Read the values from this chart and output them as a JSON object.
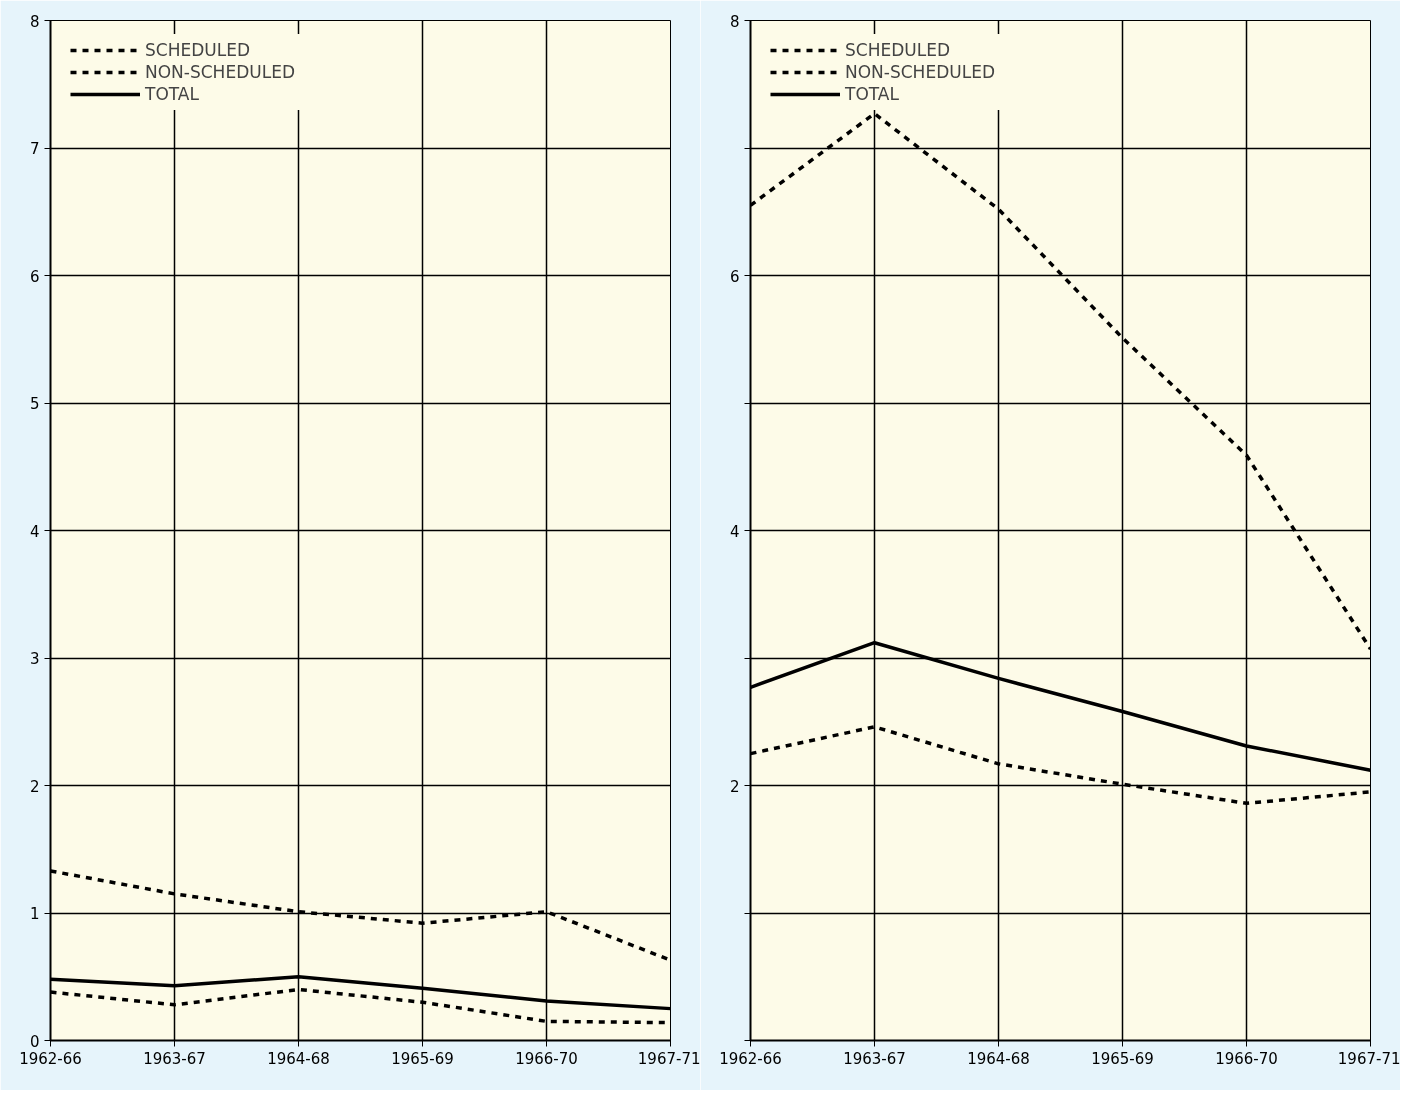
{
  "chart_data": [
    {
      "type": "line",
      "categories": [
        "1962-66",
        "1963-67",
        "1964-68",
        "1965-69",
        "1966-70",
        "1967-71"
      ],
      "ylim": [
        0,
        8
      ],
      "yticks": [
        0,
        1,
        2,
        3,
        4,
        5,
        6,
        7,
        8
      ],
      "grid": true,
      "legend": "top left",
      "marker": "none",
      "series": [
        {
          "name": "SCHEDULED",
          "color": "#000000",
          "line_style": "dashed",
          "values": [
            0.38,
            0.28,
            0.4,
            0.3,
            0.15,
            0.14
          ]
        },
        {
          "name": "NON-SCHEDULED",
          "color": "#000000",
          "line_style": "dashed",
          "values": [
            1.33,
            1.15,
            1.01,
            0.92,
            1.01,
            0.63
          ]
        },
        {
          "name": "TOTAL",
          "color": "#000000",
          "line_style": "solid",
          "values": [
            0.48,
            0.43,
            0.5,
            0.41,
            0.31,
            0.25
          ]
        }
      ]
    },
    {
      "type": "line",
      "categories": [
        "1962-66",
        "1963-67",
        "1964-68",
        "1965-69",
        "1966-70",
        "1967-71"
      ],
      "ylim": [
        0,
        8
      ],
      "yticks": [
        {
          "value": 0,
          "label": null
        },
        {
          "value": 1,
          "label": null
        },
        2,
        {
          "value": 3,
          "label": null
        },
        4,
        {
          "value": 5,
          "label": null
        },
        6,
        {
          "value": 7,
          "label": null
        },
        8
      ],
      "grid": true,
      "legend": "top left",
      "marker": "none",
      "series": [
        {
          "name": "SCHEDULED",
          "color": "#000000",
          "line_style": "dashed",
          "values": [
            2.25,
            2.46,
            2.17,
            2.01,
            1.86,
            1.95
          ]
        },
        {
          "name": "NON-SCHEDULED",
          "color": "#000000",
          "line_style": "dashed",
          "values": [
            6.55,
            7.27,
            6.52,
            5.51,
            4.59,
            3.07
          ]
        },
        {
          "name": "TOTAL",
          "color": "#000000",
          "line_style": "solid",
          "values": [
            2.77,
            3.12,
            2.84,
            2.58,
            2.31,
            2.12
          ]
        }
      ]
    }
  ]
}
